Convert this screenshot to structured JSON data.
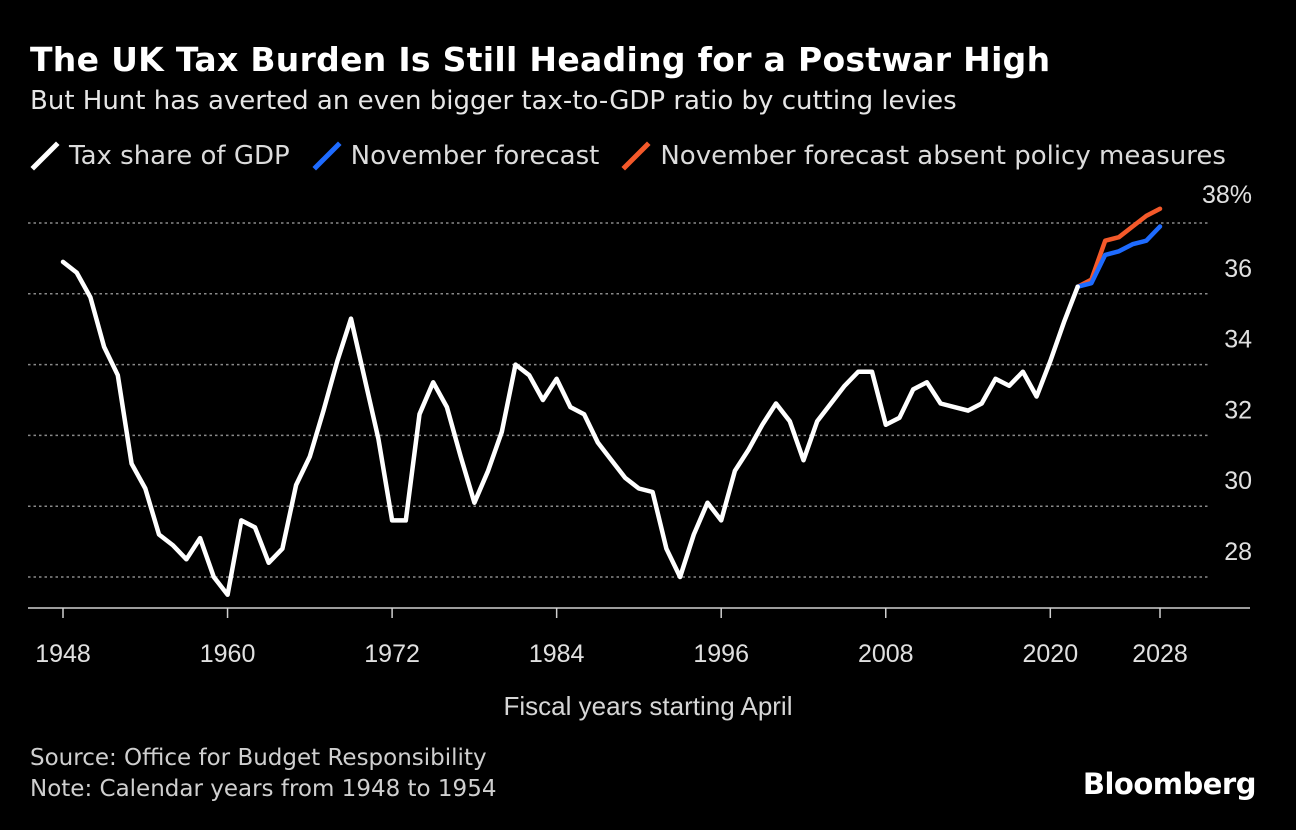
{
  "title": "The UK Tax Burden Is Still Heading for a Postwar High",
  "subtitle": "But Hunt has averted an even bigger tax-to-GDP ratio by cutting levies",
  "source": "Source: Office for Budget Responsibility",
  "note": "Note: Calendar years from 1948 to 1954",
  "brand": "Bloomberg",
  "chart_data": {
    "type": "line",
    "title": "The UK Tax Burden Is Still Heading for a Postwar High",
    "subtitle": "But Hunt has averted an even bigger tax-to-GDP ratio by cutting levies",
    "xlabel": "Fiscal years starting April",
    "ylabel": "",
    "xlim": [
      1946,
      2032
    ],
    "ylim": [
      27,
      38
    ],
    "x_ticks": [
      1948,
      1960,
      1972,
      1984,
      1996,
      2008,
      2020,
      2028
    ],
    "x_tick_labels": [
      "1948",
      "1960",
      "1972",
      "1984",
      "1996",
      "2008",
      "2020",
      "2028"
    ],
    "y_ticks": [
      28,
      30,
      32,
      34,
      36,
      38
    ],
    "y_tick_labels": [
      "28",
      "30",
      "32",
      "34",
      "36",
      "38%"
    ],
    "grid": "horizontal dotted",
    "legend_position": "top",
    "series": [
      {
        "name": "Tax share of GDP",
        "color": "#ffffff",
        "x": [
          1948,
          1949,
          1950,
          1951,
          1952,
          1953,
          1954,
          1955,
          1956,
          1957,
          1958,
          1959,
          1960,
          1961,
          1962,
          1963,
          1964,
          1965,
          1966,
          1967,
          1968,
          1969,
          1970,
          1971,
          1972,
          1973,
          1974,
          1975,
          1976,
          1977,
          1978,
          1979,
          1980,
          1981,
          1982,
          1983,
          1984,
          1985,
          1986,
          1987,
          1988,
          1989,
          1990,
          1991,
          1992,
          1993,
          1994,
          1995,
          1996,
          1997,
          1998,
          1999,
          2000,
          2001,
          2002,
          2003,
          2004,
          2005,
          2006,
          2007,
          2008,
          2009,
          2010,
          2011,
          2012,
          2013,
          2014,
          2015,
          2016,
          2017,
          2018,
          2019,
          2020,
          2021,
          2022
        ],
        "values": [
          36.9,
          36.6,
          35.9,
          34.5,
          33.7,
          31.2,
          30.5,
          29.2,
          28.9,
          28.5,
          29.1,
          28.0,
          27.5,
          29.6,
          29.4,
          28.4,
          28.8,
          30.6,
          31.4,
          32.7,
          34.1,
          35.3,
          33.6,
          31.9,
          29.6,
          29.6,
          32.6,
          33.5,
          32.8,
          31.4,
          30.1,
          31.0,
          32.1,
          34.0,
          33.7,
          33.0,
          33.6,
          32.8,
          32.6,
          31.8,
          31.3,
          30.8,
          30.5,
          30.4,
          28.8,
          28.0,
          29.2,
          30.1,
          29.6,
          31.0,
          31.6,
          32.3,
          32.9,
          32.4,
          31.3,
          32.4,
          32.9,
          33.4,
          33.8,
          33.8,
          32.3,
          32.5,
          33.3,
          33.5,
          32.9,
          32.8,
          32.7,
          32.9,
          33.6,
          33.4,
          33.8,
          33.1,
          34.1,
          35.2,
          36.2
        ]
      },
      {
        "name": "November forecast",
        "color": "#1e6bff",
        "x": [
          2022,
          2023,
          2024,
          2025,
          2026,
          2027,
          2028
        ],
        "values": [
          36.2,
          36.3,
          37.1,
          37.2,
          37.4,
          37.5,
          37.9
        ]
      },
      {
        "name": "November forecast absent policy measures",
        "color": "#f4592a",
        "x": [
          2022,
          2023,
          2024,
          2025,
          2026,
          2027,
          2028
        ],
        "values": [
          36.2,
          36.4,
          37.5,
          37.6,
          37.9,
          38.2,
          38.4
        ]
      }
    ]
  }
}
